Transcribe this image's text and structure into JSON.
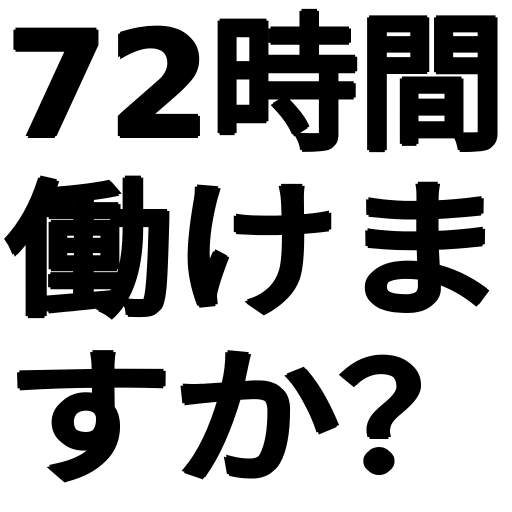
{
  "poster": {
    "lines": [
      "72時間",
      "働けま",
      "すか？"
    ],
    "text_color": "#000000",
    "background_color": "#ffffff"
  }
}
